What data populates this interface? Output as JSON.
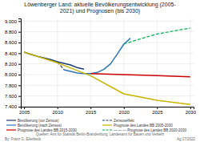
{
  "chart_data": {
    "type": "line",
    "title": "Löwenberger Land: aktuelle Bevölkerungsentwicklung (2005-\n2021) und Prognosen (bis 2030)",
    "xlim": [
      2004.5,
      2030.5
    ],
    "xticks": [
      2005,
      2010,
      2015,
      2020,
      2025,
      2030
    ],
    "ylim": [
      7400,
      9050
    ],
    "yticks": [
      {
        "value": 7400,
        "label": "7.400"
      },
      {
        "value": 7600,
        "label": "7.600"
      },
      {
        "value": 7800,
        "label": "7.800"
      },
      {
        "value": 8000,
        "label": "8.000"
      },
      {
        "value": 8200,
        "label": "8.200"
      },
      {
        "value": 8400,
        "label": "8.400"
      },
      {
        "value": 8600,
        "label": "8.600"
      },
      {
        "value": 8800,
        "label": "8.800"
      },
      {
        "value": 9000,
        "label": "9.000"
      }
    ],
    "grid": true,
    "legend": "upper right",
    "series": [
      {
        "name": "Bevölkerung (vor Zensus)",
        "color": "#1a3c6e",
        "line_style": "solid",
        "x": [
          2005,
          2006,
          2007,
          2008,
          2009,
          2010,
          2011,
          2012,
          2013,
          2014
        ],
        "values": [
          8420,
          8380,
          8340,
          8310,
          8280,
          8240,
          8210,
          8180,
          8130,
          8100
        ]
      },
      {
        "name": "Zensuseffekt",
        "color": "#1a3c6e",
        "line_style": "dashed",
        "x": [
          2010,
          2011
        ],
        "values": [
          8240,
          8090
        ]
      },
      {
        "name": "Bevölkerung (nach Zensus)",
        "color": "#2e75b6",
        "line_style": "solid",
        "x": [
          2011,
          2012,
          2013,
          2014,
          2015,
          2016,
          2017,
          2018,
          2019,
          2020,
          2021
        ],
        "values": [
          8090,
          8060,
          8030,
          8020,
          8020,
          8040,
          8100,
          8200,
          8380,
          8570,
          8680
        ]
      },
      {
        "name": "Prognose des Landes BB 2005-2030",
        "color": "#c8b400",
        "line_style": "solid",
        "x": [
          2005,
          2010,
          2015,
          2020,
          2025,
          2030
        ],
        "values": [
          8420,
          8220,
          7980,
          7640,
          7520,
          7440
        ]
      },
      {
        "name": "Prognose des Landes BB 2015-2030",
        "color": "#cc0000",
        "line_style": "solid",
        "x": [
          2015,
          2017,
          2020,
          2025,
          2030
        ],
        "values": [
          8020,
          8010,
          8000,
          7980,
          7960
        ]
      },
      {
        "name": "— — — Prognose des Landes BB 2020-2030",
        "color": "#00b050",
        "line_style": "dashed",
        "x": [
          2020,
          2022,
          2025,
          2030
        ],
        "values": [
          8570,
          8650,
          8760,
          8870
        ]
      }
    ],
    "annotations": [
      "By: Franz G. Ellerbeck",
      "Quellen: Amt für Statistik Berlin-Brandenburg, Landesamt für Bauen und Verkehr",
      "Ag 17/2022"
    ]
  }
}
